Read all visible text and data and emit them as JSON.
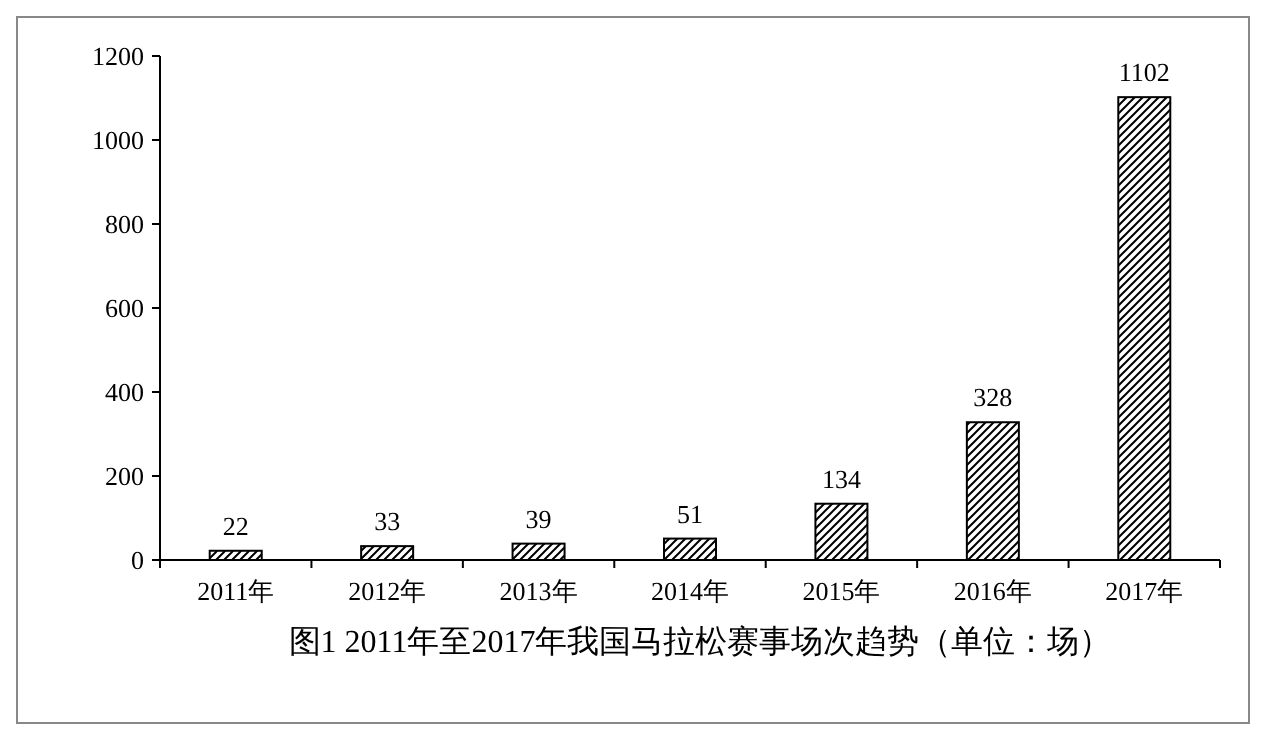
{
  "chart_data": {
    "type": "bar",
    "title": "图1 2011年至2017年我国马拉松赛事场次趋势（单位：场）",
    "categories": [
      "2011年",
      "2012年",
      "2013年",
      "2014年",
      "2015年",
      "2016年",
      "2017年"
    ],
    "values": [
      22,
      33,
      39,
      51,
      134,
      328,
      1102
    ],
    "color": "#000000",
    "ylim": [
      0,
      1200
    ],
    "yticks": [
      0,
      200,
      400,
      600,
      800,
      1000,
      1200
    ],
    "grid": false,
    "data_labels": true
  }
}
